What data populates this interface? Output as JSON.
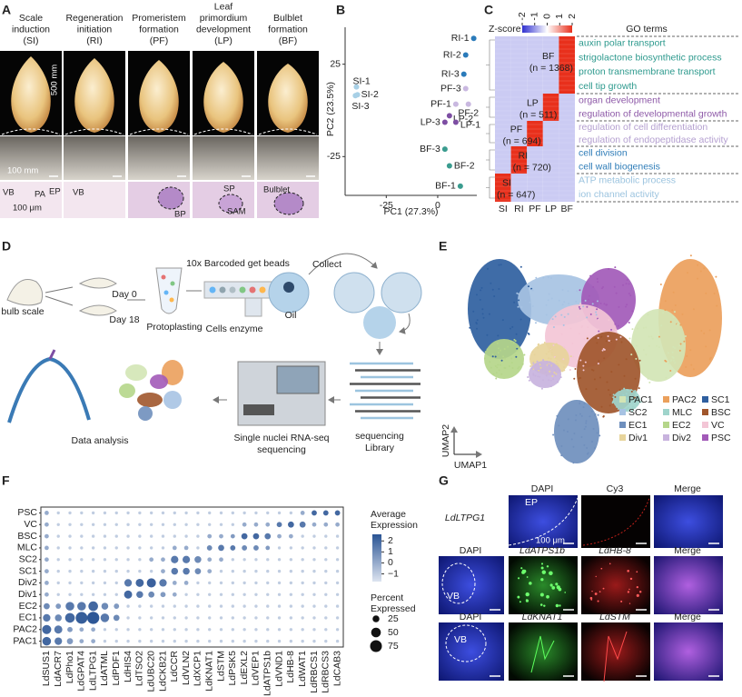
{
  "panel_labels": [
    "A",
    "B",
    "C",
    "D",
    "E",
    "F",
    "G"
  ],
  "panel_a": {
    "stages": [
      {
        "lines": [
          "Scale",
          "induction",
          "(SI)"
        ]
      },
      {
        "lines": [
          "Regeneration",
          "initiation",
          "(RI)"
        ]
      },
      {
        "lines": [
          "Promeristem",
          "formation",
          "(PF)"
        ]
      },
      {
        "lines": [
          "Leaf",
          "primordium",
          "development",
          "(LP)"
        ]
      },
      {
        "lines": [
          "Bulblet",
          "formation",
          "(BF)"
        ]
      }
    ],
    "scale_bars": [
      "500 mm",
      "100 mm",
      "100 μm"
    ],
    "annotations": [
      "VB",
      "PA",
      "EP",
      "VB",
      "BP",
      "SP",
      "SAM",
      "Bulblet"
    ]
  },
  "panel_b": {
    "type": "scatter",
    "xlabel": "PC1 (27.3%)",
    "ylabel": "PC2 (23.5%)",
    "xlim": [
      -45,
      19
    ],
    "ylim": [
      -46,
      45
    ],
    "xticks": [
      -25,
      0
    ],
    "yticks": [
      25,
      -25
    ],
    "points": [
      {
        "label": "RI-1",
        "x": 17.5,
        "y": 39,
        "color": "#2b7bba"
      },
      {
        "label": "RI-2",
        "x": 13.6,
        "y": 30,
        "color": "#2b7bba"
      },
      {
        "label": "RI-3",
        "x": 12.7,
        "y": 19.6,
        "color": "#2b7bba"
      },
      {
        "label": "PF-3",
        "x": 13.6,
        "y": 11.8,
        "color": "#c9b8e0"
      },
      {
        "label": "PF-1",
        "x": 8.8,
        "y": 3.4,
        "color": "#c9b8e0"
      },
      {
        "label": "PF-2",
        "x": 14.9,
        "y": 3.4,
        "color": "#c9b8e0"
      },
      {
        "label": "LP-2",
        "x": 5.7,
        "y": -2.9,
        "color": "#7d4ea3"
      },
      {
        "label": "LP-1",
        "x": 8.8,
        "y": -6.4,
        "color": "#7d4ea3"
      },
      {
        "label": "LP-3",
        "x": 3.5,
        "y": -6.4,
        "color": "#7d4ea3"
      },
      {
        "label": "BF-3",
        "x": 3.5,
        "y": -21,
        "color": "#3a9c8f"
      },
      {
        "label": "BF-2",
        "x": 5.7,
        "y": -30,
        "color": "#3a9c8f"
      },
      {
        "label": "BF-1",
        "x": 11,
        "y": -41,
        "color": "#3a9c8f"
      },
      {
        "label": "SI-1",
        "x": -39.5,
        "y": 12.7,
        "color": "#a8d0e6"
      },
      {
        "label": "SI-2",
        "x": -39,
        "y": 8.5,
        "color": "#a8d0e6"
      },
      {
        "label": "SI-3",
        "x": -40,
        "y": 8,
        "color": "#a8d0e6"
      }
    ]
  },
  "panel_c": {
    "type": "heatmap",
    "zscore_title": "Z-score",
    "zlim": [
      -2,
      2
    ],
    "zticks": [
      -2,
      -1,
      0,
      1,
      2
    ],
    "go_title": "GO terms",
    "columns": [
      "SI",
      "RI",
      "PF",
      "LP",
      "BF"
    ],
    "clusters": [
      {
        "label": "BF",
        "n": "(n = 1368)",
        "values": [
          -0.5,
          -0.5,
          -0.5,
          -0.5,
          2
        ],
        "term_color": "#2e9a8e",
        "terms": [
          "auxin polar transport",
          "strigolactone biosynthetic process",
          "proton transmembrane transport",
          "cell tip growth"
        ]
      },
      {
        "label": "LP",
        "n": "(n = 511)",
        "values": [
          -0.5,
          -0.5,
          -0.5,
          2,
          -0.5
        ],
        "term_color": "#8e5aa8",
        "terms": [
          "organ development",
          "regulation of developmental growth"
        ]
      },
      {
        "label": "PF",
        "n": "(n = 694)",
        "values": [
          -0.5,
          -0.5,
          2,
          -0.5,
          -0.5
        ],
        "term_color": "#b49fd0",
        "terms": [
          "regulation of cell differentiation",
          "regulation of endopeptidase activity"
        ]
      },
      {
        "label": "RI",
        "n": "(n = 720)",
        "values": [
          -0.5,
          2,
          -0.5,
          -0.5,
          -0.5
        ],
        "term_color": "#2f7db8",
        "terms": [
          "cell division",
          "cell wall biogenesis"
        ]
      },
      {
        "label": "SI",
        "n": "(n = 647)",
        "values": [
          2,
          -0.5,
          -0.5,
          -0.5,
          -0.5
        ],
        "term_color": "#9cc4df",
        "terms": [
          "ATP metabolic process",
          "ion channel activity"
        ]
      }
    ]
  },
  "panel_d": {
    "labels": [
      "bulb scale",
      "Day 0",
      "Day 18",
      "Protoplasting",
      "10x Barcoded get beads",
      "Cells enzyme",
      "Oil",
      "Collect",
      "sequencing",
      "Library",
      "Single nuclei RNA-seq",
      "sequencing",
      "Data analysis"
    ]
  },
  "panel_e": {
    "x_label": "UMAP1",
    "y_label": "UMAP2",
    "clusters": [
      {
        "name": "PAC1",
        "color": "#d3e5b5"
      },
      {
        "name": "PAC2",
        "color": "#eba05c"
      },
      {
        "name": "SC1",
        "color": "#2f5f9f"
      },
      {
        "name": "SC2",
        "color": "#a7c3e3"
      },
      {
        "name": "MLC",
        "color": "#9fd4cb"
      },
      {
        "name": "BSC",
        "color": "#a0562c"
      },
      {
        "name": "EC1",
        "color": "#6f8fbd"
      },
      {
        "name": "EC2",
        "color": "#b5d68a"
      },
      {
        "name": "VC",
        "color": "#f3c6d6"
      },
      {
        "name": "Div1",
        "color": "#e7d49b"
      },
      {
        "name": "Div2",
        "color": "#c8b3de"
      },
      {
        "name": "PSC",
        "color": "#a25ab8"
      }
    ]
  },
  "panel_f": {
    "type": "dotplot",
    "genes": [
      "LdSUS1",
      "LdACR7",
      "LdPho1",
      "LdGPAT4",
      "LdLTPG1",
      "LdATML",
      "LdPDF1",
      "LdHIS4",
      "LdTSO2",
      "LdUBC20",
      "LdCKB21",
      "LdCCR",
      "LdVLN2",
      "LdXCP1",
      "LdKNAT1",
      "LdSTM",
      "LdPSK5",
      "LdEXL2",
      "LdVEP1",
      "LdATPS1b",
      "LdVND1",
      "LdHB-8",
      "LdWAT1",
      "LdRBCS1",
      "LdRBCS3",
      "LdCAB3"
    ],
    "rows": [
      {
        "name": "PSC",
        "pct": [
          10,
          5,
          5,
          5,
          5,
          5,
          5,
          5,
          5,
          5,
          5,
          5,
          5,
          5,
          5,
          5,
          5,
          5,
          5,
          5,
          5,
          5,
          10,
          15,
          15,
          15
        ],
        "expr": [
          0,
          -1,
          -1,
          -1,
          -1,
          -1,
          -1,
          -1,
          -1,
          -1,
          -1,
          -1,
          -1,
          -1,
          -1,
          -1,
          -1,
          -1,
          -1,
          -1,
          -1,
          -1,
          0,
          2,
          2,
          2
        ]
      },
      {
        "name": "VC",
        "pct": [
          10,
          5,
          5,
          5,
          5,
          5,
          5,
          5,
          5,
          5,
          5,
          5,
          5,
          5,
          5,
          5,
          5,
          10,
          10,
          10,
          15,
          20,
          20,
          10,
          10,
          10
        ],
        "expr": [
          0,
          -1,
          -1,
          -1,
          -1,
          -1,
          -1,
          -1,
          -1,
          -1,
          -1,
          -1,
          -1,
          -1,
          -1,
          -1,
          -1,
          0,
          0,
          0,
          1.5,
          2,
          1.5,
          0,
          0,
          0
        ]
      },
      {
        "name": "BSC",
        "pct": [
          10,
          5,
          5,
          5,
          5,
          5,
          5,
          5,
          5,
          5,
          5,
          5,
          5,
          5,
          10,
          10,
          10,
          20,
          20,
          20,
          10,
          10,
          5,
          5,
          5,
          5
        ],
        "expr": [
          0,
          -1,
          -1,
          -1,
          -1,
          -1,
          -1,
          -1,
          -1,
          -1,
          -1,
          -1,
          -1,
          -1,
          0,
          0,
          0.5,
          2,
          2,
          1.5,
          0,
          0,
          -1,
          -1,
          -1,
          -1
        ]
      },
      {
        "name": "MLC",
        "pct": [
          10,
          5,
          5,
          5,
          5,
          5,
          5,
          5,
          5,
          5,
          5,
          10,
          10,
          5,
          15,
          20,
          15,
          15,
          15,
          10,
          5,
          5,
          5,
          5,
          5,
          5
        ],
        "expr": [
          0,
          -1,
          -1,
          -1,
          -1,
          -1,
          -1,
          -1,
          -1,
          -1,
          -1,
          0,
          0,
          -1,
          1,
          1.5,
          1.5,
          1,
          1,
          0.5,
          -1,
          -1,
          -1,
          -1,
          -1,
          -1
        ]
      },
      {
        "name": "SC2",
        "pct": [
          10,
          5,
          5,
          5,
          5,
          5,
          5,
          5,
          5,
          10,
          10,
          30,
          30,
          25,
          10,
          10,
          5,
          5,
          5,
          5,
          5,
          5,
          5,
          5,
          5,
          5
        ],
        "expr": [
          0,
          -1,
          -1,
          -1,
          -1,
          -1,
          -1,
          -1,
          -1,
          0,
          0,
          1.5,
          1.5,
          1,
          0,
          0,
          -1,
          -1,
          -1,
          -1,
          -1,
          -1,
          -1,
          -1,
          -1,
          -1
        ]
      },
      {
        "name": "SC1",
        "pct": [
          10,
          5,
          5,
          5,
          5,
          5,
          5,
          5,
          5,
          5,
          10,
          25,
          25,
          20,
          10,
          5,
          5,
          5,
          5,
          5,
          5,
          5,
          5,
          5,
          5,
          5
        ],
        "expr": [
          0,
          -1,
          -1,
          -1,
          -1,
          -1,
          -1,
          -1,
          -1,
          -1,
          0,
          1.5,
          1.5,
          1,
          0,
          -1,
          -1,
          -1,
          -1,
          -1,
          -1,
          -1,
          -1,
          -1,
          -1,
          -1
        ]
      },
      {
        "name": "Div2",
        "pct": [
          10,
          5,
          5,
          5,
          5,
          5,
          5,
          30,
          35,
          45,
          30,
          10,
          10,
          5,
          5,
          5,
          5,
          5,
          5,
          5,
          5,
          5,
          5,
          5,
          5,
          5
        ],
        "expr": [
          0,
          -1,
          -1,
          -1,
          -1,
          -1,
          -1,
          1.5,
          2,
          2.2,
          1.5,
          0,
          0,
          -1,
          -1,
          -1,
          -1,
          -1,
          -1,
          -1,
          -1,
          -1,
          -1,
          -1,
          -1,
          -1
        ]
      },
      {
        "name": "Div1",
        "pct": [
          10,
          5,
          5,
          5,
          5,
          5,
          5,
          35,
          25,
          20,
          15,
          10,
          5,
          5,
          5,
          5,
          5,
          5,
          5,
          5,
          5,
          5,
          5,
          5,
          5,
          5
        ],
        "expr": [
          0,
          -1,
          -1,
          -1,
          -1,
          -1,
          -1,
          2,
          1.5,
          1,
          0.5,
          0,
          -1,
          -1,
          -1,
          -1,
          -1,
          -1,
          -1,
          -1,
          -1,
          -1,
          -1,
          -1,
          -1,
          -1
        ]
      },
      {
        "name": "EC2",
        "pct": [
          20,
          15,
          40,
          40,
          50,
          25,
          15,
          5,
          5,
          5,
          5,
          5,
          5,
          5,
          5,
          5,
          5,
          5,
          5,
          5,
          5,
          5,
          5,
          5,
          5,
          5
        ],
        "expr": [
          1,
          0.5,
          1.5,
          1.5,
          2,
          1,
          0.5,
          -1,
          -1,
          -1,
          -1,
          -1,
          -1,
          -1,
          -1,
          -1,
          -1,
          -1,
          -1,
          -1,
          -1,
          -1,
          -1,
          -1,
          -1,
          -1
        ]
      },
      {
        "name": "EC1",
        "pct": [
          30,
          25,
          50,
          75,
          80,
          40,
          20,
          5,
          5,
          5,
          5,
          5,
          5,
          5,
          5,
          5,
          5,
          5,
          5,
          5,
          5,
          5,
          5,
          5,
          5,
          5
        ],
        "expr": [
          1.5,
          1,
          2,
          2.3,
          2.5,
          1.5,
          1,
          -1,
          -1,
          -1,
          -1,
          -1,
          -1,
          -1,
          -1,
          -1,
          -1,
          -1,
          -1,
          -1,
          -1,
          -1,
          -1,
          -1,
          -1,
          -1
        ]
      },
      {
        "name": "PAC2",
        "pct": [
          45,
          35,
          15,
          10,
          10,
          5,
          5,
          5,
          5,
          5,
          5,
          5,
          5,
          5,
          5,
          5,
          5,
          5,
          5,
          5,
          5,
          5,
          5,
          5,
          5,
          5
        ],
        "expr": [
          2,
          1.5,
          0.5,
          0,
          0,
          -1,
          -1,
          -1,
          -1,
          -1,
          -1,
          -1,
          -1,
          -1,
          -1,
          -1,
          -1,
          -1,
          -1,
          -1,
          -1,
          -1,
          -1,
          -1,
          -1,
          -1
        ]
      },
      {
        "name": "PAC1",
        "pct": [
          40,
          30,
          20,
          10,
          10,
          5,
          5,
          5,
          5,
          5,
          5,
          5,
          5,
          5,
          5,
          5,
          5,
          5,
          5,
          5,
          5,
          5,
          5,
          5,
          5,
          5
        ],
        "expr": [
          2,
          1.5,
          0.5,
          0,
          0,
          -1,
          -1,
          -1,
          -1,
          -1,
          -1,
          -1,
          -1,
          -1,
          -1,
          -1,
          -1,
          -1,
          -1,
          -1,
          -1,
          -1,
          -1,
          -1,
          -1,
          -1
        ]
      }
    ],
    "expression_title": [
      "Average",
      "Expression"
    ],
    "expr_lim": [
      -1.7,
      2.6
    ],
    "expr_ticks": [
      2,
      1,
      0,
      {
        "value": -1,
        "label": "−1"
      }
    ],
    "percent_title": [
      "Percent",
      "Expressed"
    ],
    "percent_ticks": [
      25,
      50,
      75
    ]
  },
  "panel_g": {
    "labels": [
      "DAPI",
      "Cy3",
      "Merge",
      "LdLTPG1",
      "EP",
      "100 μm",
      "DAPI",
      "LdATPS1b",
      "LdHB-8",
      "Merge",
      "VB",
      "DAPI",
      "LdKNAT1",
      "LdSTM",
      "Merge",
      "VB"
    ]
  }
}
